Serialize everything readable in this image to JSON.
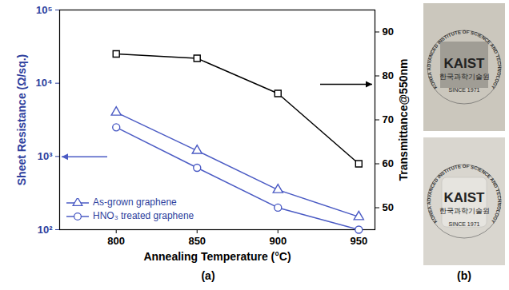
{
  "chart_data": {
    "type": "line",
    "panel_label": "(a)",
    "x": [
      800,
      850,
      900,
      950
    ],
    "xlabel": "Annealing Temperature (°C)",
    "ylabel": "Sheet Resistance (Ω/sq.)",
    "y2label": "Transmittance@550nm",
    "xlim": [
      765,
      960
    ],
    "xticks": [
      800,
      850,
      900,
      950
    ],
    "log": "y",
    "ylim": [
      100,
      100000
    ],
    "yticks": [
      {
        "value": 100,
        "label": "10²"
      },
      {
        "value": 1000,
        "label": "10³"
      },
      {
        "value": 10000,
        "label": "10⁴"
      },
      {
        "value": 100000,
        "label": "10⁵"
      }
    ],
    "y2lim": [
      45,
      95
    ],
    "y2ticks": [
      50,
      60,
      70,
      80,
      90
    ],
    "legend": "lower left",
    "series": [
      {
        "name": "As-grown graphene",
        "color": "#4b5bc4",
        "marker": "triangle",
        "values": [
          4000,
          1200,
          350,
          150
        ]
      },
      {
        "name": "HNO₃ treated graphene",
        "color": "#4b5bc4",
        "marker": "circle",
        "values": [
          2500,
          700,
          200,
          100
        ]
      },
      {
        "name": "Transmittance@550nm",
        "color": "#000000",
        "marker": "square",
        "axis": "y2",
        "values": [
          85,
          84,
          76,
          60
        ]
      }
    ]
  },
  "photo_panel": {
    "label": "(b)",
    "photos": [
      {
        "ring_text": "KOREA ADVANCED INSTITUTE OF SCIENCE AND TECHNOLOGY",
        "logo": "KAIST",
        "korean": "한국과학기술원",
        "since": "SINCE 1971"
      },
      {
        "ring_text": "KOREA ADVANCED INSTITUTE OF SCIENCE AND TECHNOLOGY",
        "logo": "KAIST",
        "korean": "한국과학기술원",
        "since": "SINCE 1971"
      }
    ]
  }
}
